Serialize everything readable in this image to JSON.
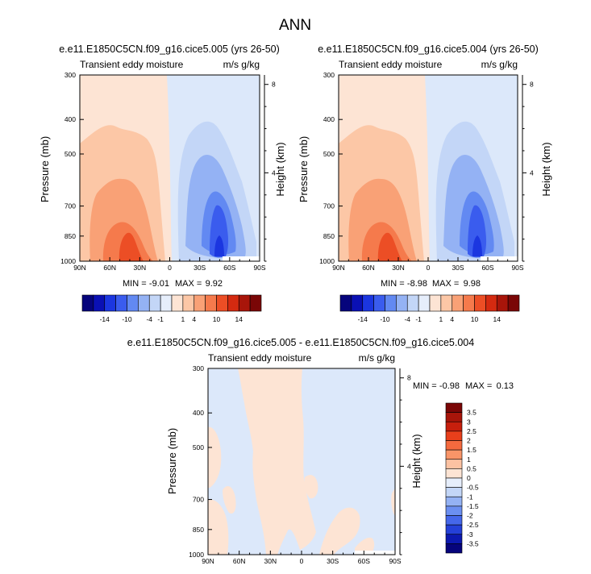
{
  "page_title": "ANN",
  "chart_data": [
    {
      "type": "heatmap",
      "title": "e.e11.E1850C5CN.f09_g16.cice5.005 (yrs 26-50)",
      "subtitle_left": "Transient eddy moisture",
      "subtitle_right": "m/s g/kg",
      "ylabel": "Pressure (mb)",
      "ylabel_right": "Height (km)",
      "x_ticks": [
        "90N",
        "60N",
        "30N",
        "0",
        "30S",
        "60S",
        "90S"
      ],
      "y_ticks": [
        "300",
        "400",
        "500",
        "700",
        "850",
        "1000"
      ],
      "y_ticks_right": [
        "8",
        "4"
      ],
      "min_label": "MIN =",
      "min_value": "-9.01",
      "max_label": "MAX =",
      "max_value": "9.92",
      "colorbar_labels": [
        "-14",
        "-10",
        "-4",
        "-1",
        "1",
        "4",
        "10",
        "14"
      ]
    },
    {
      "type": "heatmap",
      "title": "e.e11.E1850C5CN.f09_g16.cice5.004 (yrs 26-50)",
      "subtitle_left": "Transient eddy moisture",
      "subtitle_right": "m/s g/kg",
      "ylabel": "Pressure (mb)",
      "ylabel_right": "Height (km)",
      "x_ticks": [
        "90N",
        "60N",
        "30N",
        "0",
        "30S",
        "60S",
        "90S"
      ],
      "y_ticks": [
        "300",
        "400",
        "500",
        "700",
        "850",
        "1000"
      ],
      "y_ticks_right": [
        "8",
        "4"
      ],
      "min_label": "MIN =",
      "min_value": "-8.98",
      "max_label": "MAX =",
      "max_value": "9.98",
      "colorbar_labels": [
        "-14",
        "-10",
        "-4",
        "-1",
        "1",
        "4",
        "10",
        "14"
      ]
    },
    {
      "type": "heatmap",
      "title": "e.e11.E1850C5CN.f09_g16.cice5.005 - e.e11.E1850C5CN.f09_g16.cice5.004",
      "subtitle_left": "Transient eddy moisture",
      "subtitle_right": "m/s g/kg",
      "ylabel": "Pressure (mb)",
      "ylabel_right": "Height (km)",
      "x_ticks": [
        "90N",
        "60N",
        "30N",
        "0",
        "30S",
        "60S",
        "90S"
      ],
      "y_ticks": [
        "300",
        "400",
        "500",
        "700",
        "850",
        "1000"
      ],
      "y_ticks_right": [
        "8",
        "4"
      ],
      "min_label": "MIN =",
      "min_value": "-0.98",
      "max_label": "MAX =",
      "max_value": "0.13",
      "colorbar_labels": [
        "3.5",
        "3",
        "2.5",
        "2",
        "1.5",
        "1",
        "0.5",
        "0",
        "-0.5",
        "-1",
        "-1.5",
        "-2",
        "-2.5",
        "-3",
        "-3.5"
      ]
    }
  ],
  "colors": {
    "scale": [
      "#06047c",
      "#0a10b4",
      "#1b36e0",
      "#3a5cee",
      "#6289f2",
      "#94b2f4",
      "#c3d6f7",
      "#e6eefb",
      "#fde4d4",
      "#fcc7a6",
      "#f9a176",
      "#f57a4c",
      "#ec4e25",
      "#d42a10",
      "#a8150a",
      "#7a0606"
    ],
    "diff_scale": [
      "#7a0606",
      "#a8150a",
      "#c71f0d",
      "#e83f1b",
      "#f56a3e",
      "#f99568",
      "#fcc2a2",
      "#fde4d4",
      "#e6eefb",
      "#c3d6f7",
      "#94b2f4",
      "#6b8ff1",
      "#4567ea",
      "#2440d8",
      "#0c19b0",
      "#06047c"
    ]
  }
}
